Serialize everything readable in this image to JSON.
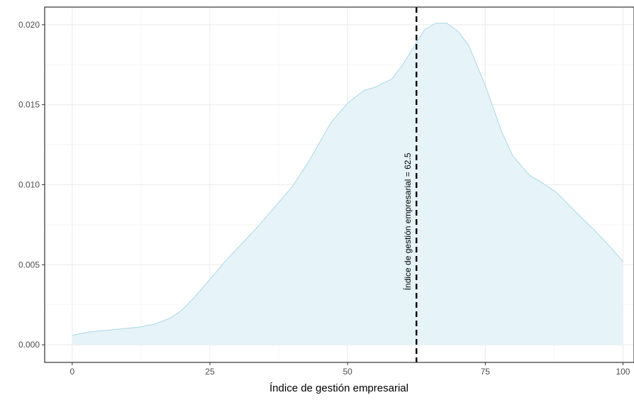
{
  "chart_data": {
    "type": "area",
    "title": "",
    "xlabel": "Índice de gestión empresarial",
    "ylabel": "",
    "xlim": [
      -5,
      102
    ],
    "ylim": [
      -0.0011,
      0.0211
    ],
    "grid": true,
    "x_ticks": [
      0,
      25,
      50,
      75,
      100
    ],
    "x_tick_labels": [
      "0",
      "25",
      "50",
      "75",
      "100"
    ],
    "y_ticks": [
      0.0,
      0.005,
      0.01,
      0.015,
      0.02
    ],
    "y_tick_labels": [
      "0.000",
      "0.005",
      "0.010",
      "0.015",
      "0.020"
    ],
    "series": [
      {
        "x": [
          0,
          3,
          6,
          9,
          12,
          15,
          18,
          20,
          22,
          25,
          28,
          31,
          34,
          37,
          40,
          43,
          45,
          47,
          50,
          53,
          55,
          58,
          60,
          62,
          64,
          66,
          68,
          70,
          72,
          75,
          78,
          80,
          83,
          85,
          88,
          90,
          92,
          95,
          98,
          100
        ],
        "y": [
          0.0006,
          0.0008,
          0.0009,
          0.001,
          0.0011,
          0.0013,
          0.0017,
          0.0022,
          0.0029,
          0.0041,
          0.0053,
          0.0064,
          0.0075,
          0.0087,
          0.0099,
          0.0115,
          0.0127,
          0.0139,
          0.0151,
          0.0159,
          0.0161,
          0.0166,
          0.0175,
          0.0186,
          0.0197,
          0.0201,
          0.0201,
          0.0196,
          0.0187,
          0.0162,
          0.0133,
          0.0118,
          0.0106,
          0.0102,
          0.0095,
          0.0088,
          0.0081,
          0.0071,
          0.006,
          0.0052
        ],
        "fill_color": "#e6f3f8",
        "line_color": "#add8e6"
      }
    ],
    "reference_line": {
      "x": 62.5,
      "label": "Índice de gestión empresarial = 62.5",
      "style": "dashed",
      "color": "#000000"
    }
  }
}
